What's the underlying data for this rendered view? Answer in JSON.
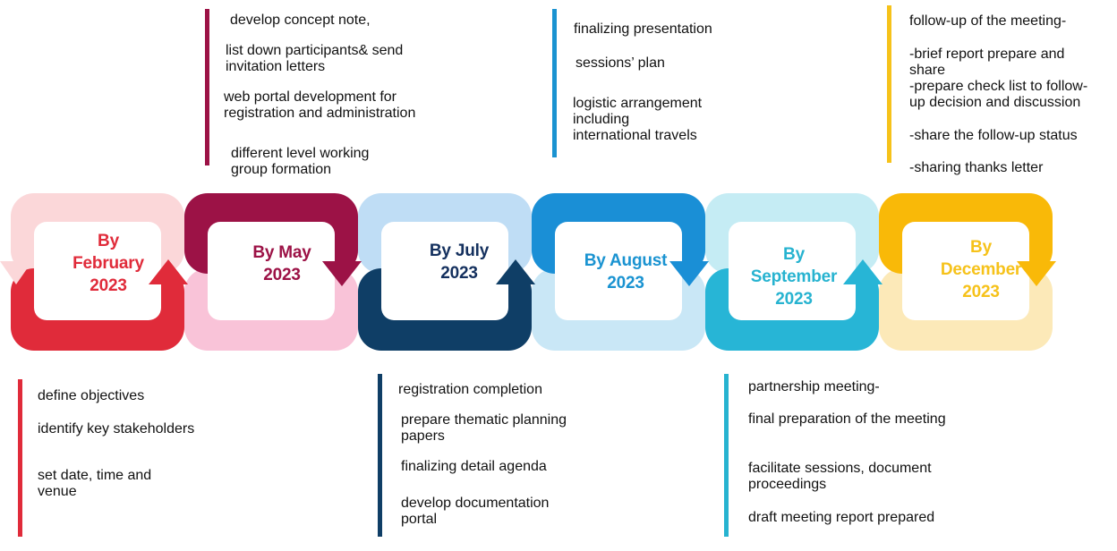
{
  "stages": [
    {
      "period": "By February 2023",
      "lines": [
        "By",
        "February",
        "2023"
      ],
      "label_color": "#E02B3A",
      "dark": "#E02B3A",
      "light": "#FBD7D9"
    },
    {
      "period": "By May 2023",
      "lines": [
        "By May",
        "2023"
      ],
      "label_color": "#9C1246",
      "dark": "#9C1246",
      "light": "#F9C3D8"
    },
    {
      "period": "By July 2023",
      "lines": [
        "By July",
        "2023"
      ],
      "label_color": "#14305E",
      "dark": "#0F3E66",
      "light": "#BFDDF5"
    },
    {
      "period": "By August 2023",
      "lines": [
        "By August",
        "2023"
      ],
      "label_color": "#1A93D1",
      "dark": "#1A8FD6",
      "light": "#C9E7F6"
    },
    {
      "period": "By September 2023",
      "lines": [
        "By",
        "September",
        "2023"
      ],
      "label_color": "#27B3D0",
      "dark": "#27B5D6",
      "light": "#C5ECF4"
    },
    {
      "period": "By December 2023",
      "lines": [
        "By",
        "December",
        "2023"
      ],
      "label_color": "#F6C21A",
      "dark": "#F9B908",
      "light": "#FCE9B8"
    }
  ],
  "notes_top": {
    "may": [
      "develop concept note,",
      "list down participants& send",
      "invitation letters",
      "web portal development for",
      "registration and administration",
      "different level working",
      "group formation"
    ],
    "august": [
      "finalizing presentation",
      "sessions’ plan",
      "logistic arrangement",
      "including",
      "international travels"
    ],
    "december": [
      "follow-up of the meeting-",
      "-brief report prepare and",
      "share",
      "-prepare check list to follow-",
      "up decision and discussion",
      "-share the follow-up status",
      "-sharing thanks letter"
    ]
  },
  "notes_bottom": {
    "february": [
      "define objectives",
      "identify key stakeholders",
      "set date, time and",
      "venue"
    ],
    "july": [
      "registration completion",
      "prepare thematic planning",
      "papers",
      "finalizing detail agenda",
      "develop documentation",
      "portal"
    ],
    "september": [
      "partnership meeting-",
      "final preparation of the meeting",
      "facilitate sessions, document",
      "proceedings",
      "draft meeting report prepared"
    ]
  }
}
